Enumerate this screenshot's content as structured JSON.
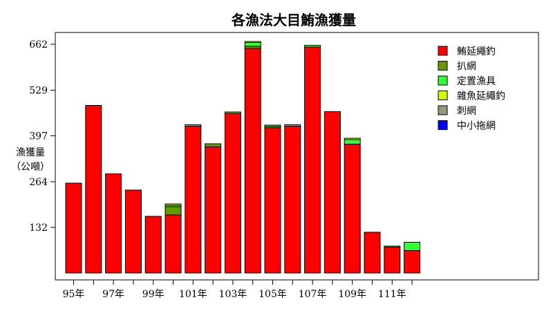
{
  "chart_data": {
    "type": "bar",
    "stacked": true,
    "title": "各漁法大目鮪漁獲量",
    "ylabel": [
      "漁獲量",
      "（公噸）"
    ],
    "yticks": [
      132,
      264,
      397,
      529,
      662
    ],
    "ylim": [
      0,
      700
    ],
    "grid": false,
    "legend_position": "top-right",
    "categories": [
      "95年",
      "96年",
      "97年",
      "98年",
      "99年",
      "100年",
      "101年",
      "102年",
      "103年",
      "104年",
      "105年",
      "106年",
      "107年",
      "108年",
      "109年",
      "110年",
      "111年",
      "112年"
    ],
    "xtick_labels": [
      "95年",
      "",
      "97年",
      "",
      "99年",
      "",
      "101年",
      "",
      "103年",
      "",
      "105年",
      "",
      "107年",
      "",
      "109年",
      "",
      "111年",
      ""
    ],
    "series": [
      {
        "name": "鮪延繩釣",
        "color": "#ff0000",
        "values": [
          260,
          485,
          287,
          240,
          164,
          168,
          425,
          365,
          462,
          650,
          420,
          425,
          654,
          467,
          373,
          118,
          75,
          65
        ]
      },
      {
        "name": "扒網",
        "color": "#669900",
        "values": [
          0,
          0,
          0,
          0,
          0,
          24,
          0,
          9,
          0,
          6,
          4,
          0,
          0,
          0,
          0,
          0,
          0,
          0
        ]
      },
      {
        "name": "定置漁具",
        "color": "#33ff33",
        "values": [
          0,
          0,
          0,
          0,
          0,
          4,
          4,
          0,
          4,
          11,
          4,
          4,
          5,
          0,
          13,
          0,
          3,
          24
        ]
      },
      {
        "name": "雜魚延繩釣",
        "color": "#ccff00",
        "values": [
          0,
          0,
          0,
          0,
          0,
          4,
          0,
          0,
          0,
          3,
          0,
          0,
          0,
          0,
          4,
          0,
          0,
          0
        ]
      },
      {
        "name": "刺網",
        "color": "#999977",
        "values": [
          0,
          0,
          0,
          0,
          0,
          0,
          0,
          0,
          0,
          0,
          0,
          0,
          0,
          0,
          0,
          0,
          0,
          0
        ]
      },
      {
        "name": "中小拖網",
        "color": "#0000ff",
        "values": [
          0,
          0,
          0,
          0,
          0,
          0,
          0,
          0,
          0,
          0,
          0,
          0,
          0,
          0,
          0,
          0,
          0,
          0
        ]
      }
    ]
  }
}
